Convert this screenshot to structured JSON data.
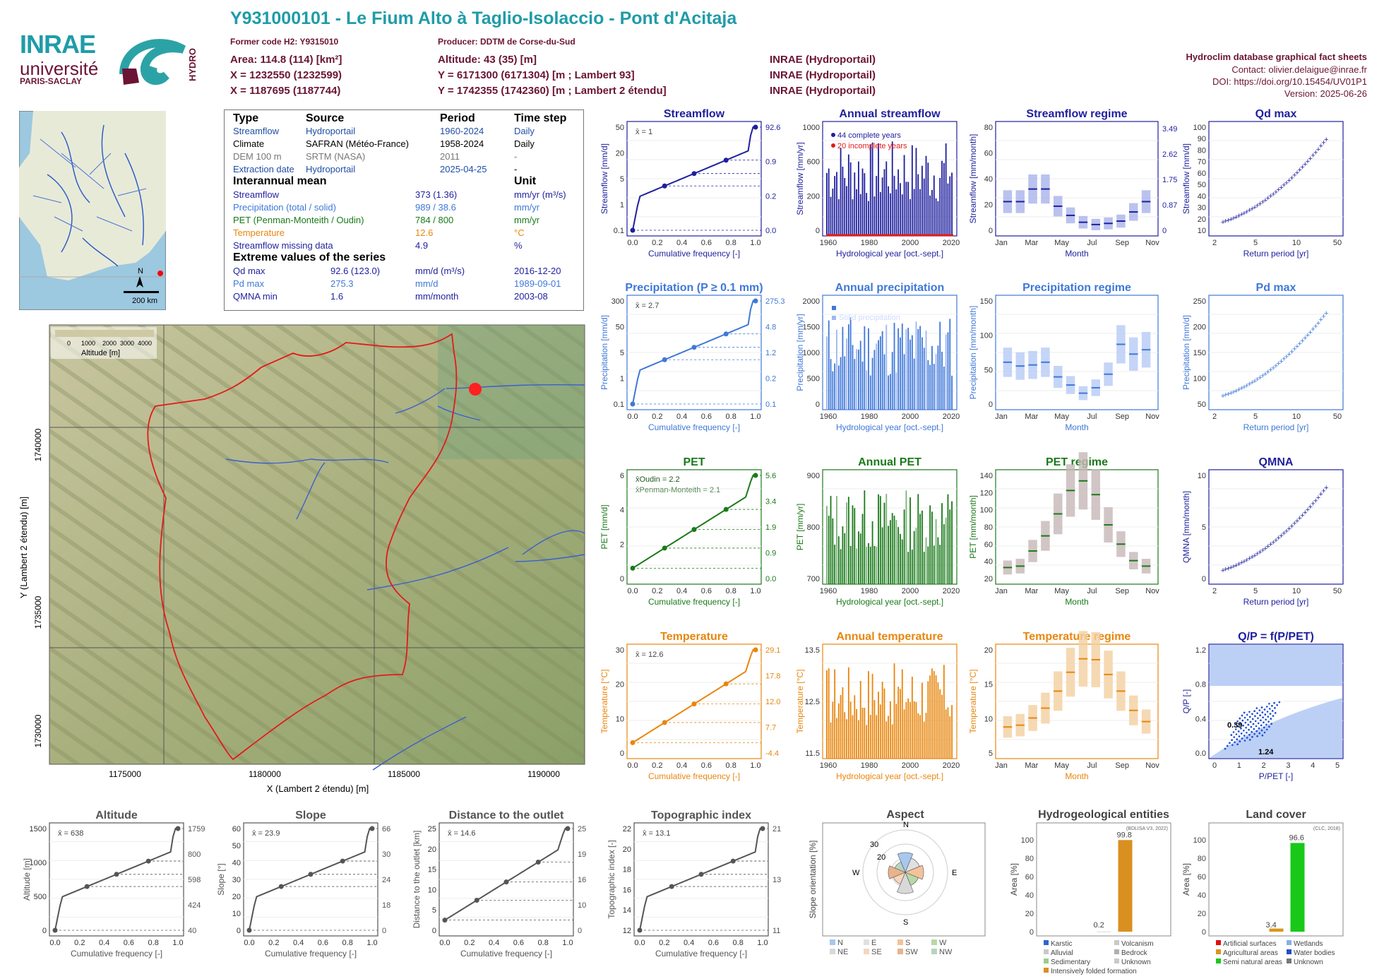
{
  "header": {
    "title": "Y931000101 - Le Fium Alto à Taglio-Isolaccio - Pont d'Acitaja",
    "former_code": "Former code H2: Y9315010",
    "producer": "Producer: DDTM de Corse-du-Sud",
    "area": "Area: 114.8 (114) [km²]",
    "altitude": "Altitude: 43 (35) [m]",
    "x93": "X = 1232550 (1232599)",
    "y93": "Y = 6171300 (6171304) [m ; Lambert 93]",
    "x2e": "X = 1187695 (1187744)",
    "y2e": "Y = 1742355 (1742360) [m ; Lambert 2 étendu]",
    "src1": "INRAE (Hydroportail)",
    "src2": "INRAE (Hydroportail)",
    "src3": "INRAE (Hydroportail)",
    "right1": "Hydroclim database graphical fact sheets",
    "right2": "Contact: olivier.delaigue@inrae.fr",
    "right3": "DOI: https://doi.org/10.15454/UV01P1",
    "right4": "Version: 2025-06-26",
    "logo_inrae": "INRAE",
    "logo_univ": "université",
    "logo_ps": "PARIS-SACLAY",
    "logo_hydro": "HYDRO"
  },
  "overview_map": {
    "north": "N",
    "scale": "200 km"
  },
  "table": {
    "h_type": "Type",
    "h_source": "Source",
    "h_period": "Period",
    "h_step": "Time step",
    "rows": [
      [
        "Streamflow",
        "Hydroportail",
        "1960-2024",
        "Daily"
      ],
      [
        "Climate",
        "SAFRAN (Météo-France)",
        "1958-2024",
        "Daily"
      ],
      [
        "DEM 100 m",
        "SRTM (NASA)",
        "2011",
        "-"
      ],
      [
        "Extraction date",
        "Hydroportail",
        "2025-04-25",
        "-"
      ]
    ],
    "h_inter": "Interannual mean",
    "h_unit": "Unit",
    "means": [
      [
        "Streamflow",
        "373 (1.36)",
        "mm/yr (m³/s)"
      ],
      [
        "Precipitation (total / solid)",
        "989 / 38.6",
        "mm/yr"
      ],
      [
        "PET (Penman-Monteith / Oudin)",
        "784 / 800",
        "mm/yr"
      ],
      [
        "Temperature",
        "12.6",
        "°C"
      ],
      [
        "Streamflow missing data",
        "4.9",
        "%"
      ]
    ],
    "h_extreme": "Extreme values of the series",
    "extremes": [
      [
        "Qd max",
        "92.6 (123.0)",
        "mm/d (m³/s)",
        "2016-12-20"
      ],
      [
        "Pd max",
        "275.3",
        "mm/d",
        "1989-09-01"
      ],
      [
        "QMNA min",
        "1.6",
        "mm/month",
        "2003-08"
      ]
    ]
  },
  "basin_map": {
    "legend_ticks": [
      "0",
      "1000",
      "2000",
      "3000",
      "4000"
    ],
    "legend_label": "Altitude [m]",
    "xlabel": "X (Lambert 2 étendu) [m]",
    "ylabel": "Y (Lambert 2 étendu) [m]",
    "xticks": [
      "1175000",
      "1180000",
      "1185000",
      "1190000"
    ],
    "yticks": [
      "1740000",
      "1735000",
      "1730000"
    ]
  },
  "panels": {
    "streamflow": {
      "title": "Streamflow",
      "ylabel": "Streamflow [mm/d]",
      "xlabel": "Cumulative frequency [-]",
      "mean": "x̄ = 1",
      "right": [
        "92.6",
        "0.9",
        "0.2",
        "0.0"
      ],
      "xt": [
        "0.0",
        "0.2",
        "0.4",
        "0.6",
        "0.8",
        "1.0"
      ],
      "yt": [
        "0.1",
        "1",
        "5",
        "20",
        "50"
      ]
    },
    "annual_streamflow": {
      "title": "Annual streamflow",
      "ylabel": "Streamflow [mm/yr]",
      "xlabel": "Hydrological year [oct.-sept.]",
      "leg1": "44 complete years",
      "leg2": "20 incomplete years",
      "xt": [
        "1960",
        "1980",
        "2000",
        "2020"
      ],
      "yt": [
        "0",
        "200",
        "600",
        "1000"
      ]
    },
    "streamflow_regime": {
      "title": "Streamflow regime",
      "ylabel": "Streamflow [mm/month]",
      "xlabel": "Month",
      "xt": [
        "Jan",
        "Mar",
        "May",
        "Jul",
        "Sep",
        "Nov"
      ],
      "yt": [
        "0",
        "20",
        "40",
        "60",
        "80"
      ],
      "yr": [
        "0",
        "0.87",
        "1.75",
        "2.62",
        "3.49"
      ]
    },
    "qd_max": {
      "title": "Qd max",
      "ylabel": "Streamflow [mm/d]",
      "xlabel": "Return period [yr]",
      "xt": [
        "2",
        "5",
        "10",
        "50"
      ],
      "yt": [
        "10",
        "20",
        "30",
        "40",
        "50",
        "60",
        "70",
        "80",
        "90",
        "100"
      ]
    },
    "precipitation": {
      "title": "Precipitation (P ≥ 0.1 mm)",
      "ylabel": "Precipitation [mm/d]",
      "xlabel": "Cumulative frequency [-]",
      "mean": "x̄ = 2.7",
      "right": [
        "275.3",
        "4.8",
        "1.2",
        "0.2",
        "0.1"
      ],
      "xt": [
        "0.0",
        "0.2",
        "0.4",
        "0.6",
        "0.8",
        "1.0"
      ],
      "yt": [
        "0.1",
        "1",
        "5",
        "50",
        "300"
      ]
    },
    "annual_precip": {
      "title": "Annual precipitation",
      "ylabel": "Precipitation [mm/yr]",
      "xlabel": "Hydrological year [oct.-sept.]",
      "leg1": "Total precipitation",
      "leg2": "Solid precipitation",
      "xt": [
        "1960",
        "1980",
        "2000",
        "2020"
      ],
      "yt": [
        "0",
        "500",
        "1000",
        "1500",
        "2000"
      ]
    },
    "precip_regime": {
      "title": "Precipitation regime",
      "ylabel": "Precipitation [mm/month]",
      "xlabel": "Month",
      "xt": [
        "Jan",
        "Mar",
        "May",
        "Jul",
        "Sep",
        "Nov"
      ],
      "yt": [
        "0",
        "50",
        "100",
        "150"
      ]
    },
    "pd_max": {
      "title": "Pd max",
      "ylabel": "Precipitation [mm/d]",
      "xlabel": "Return period [yr]",
      "xt": [
        "2",
        "5",
        "10",
        "50"
      ],
      "yt": [
        "50",
        "100",
        "150",
        "200",
        "250"
      ]
    },
    "pet": {
      "title": "PET",
      "ylabel": "PET [mm/d]",
      "xlabel": "Cumulative frequency [-]",
      "mean1": "x̄Oudin = 2.2",
      "mean2": "x̄Penman-Monteith = 2.1",
      "right": [
        "5.6",
        "3.4",
        "1.9",
        "0.9",
        "0.0"
      ],
      "xt": [
        "0.0",
        "0.2",
        "0.4",
        "0.6",
        "0.8",
        "1.0"
      ],
      "yt": [
        "0",
        "2",
        "4",
        "6"
      ]
    },
    "annual_pet": {
      "title": "Annual PET",
      "ylabel": "PET [mm/yr]",
      "xlabel": "Hydrological year [oct.-sept.]",
      "xt": [
        "1960",
        "1980",
        "2000",
        "2020"
      ],
      "yt": [
        "700",
        "800",
        "900"
      ]
    },
    "pet_regime": {
      "title": "PET regime",
      "ylabel": "PET [mm/month]",
      "xlabel": "Month",
      "xt": [
        "Jan",
        "Mar",
        "May",
        "Jul",
        "Sep",
        "Nov"
      ],
      "yt": [
        "20",
        "40",
        "60",
        "80",
        "100",
        "120",
        "140"
      ]
    },
    "qmna": {
      "title": "QMNA",
      "ylabel": "QMNA [mm/month]",
      "xlabel": "Return period [yr]",
      "xt": [
        "2",
        "5",
        "10",
        "50"
      ],
      "yt": [
        "0",
        "5",
        "10"
      ]
    },
    "temperature": {
      "title": "Temperature",
      "ylabel": "Temperature [°C]",
      "xlabel": "Cumulative frequency [-]",
      "mean": "x̄ = 12.6",
      "right": [
        "29.1",
        "17.8",
        "12.0",
        "7.7",
        "-4.4"
      ],
      "xt": [
        "0.0",
        "0.2",
        "0.4",
        "0.6",
        "0.8",
        "1.0"
      ],
      "yt": [
        "0",
        "10",
        "20",
        "30"
      ]
    },
    "annual_temp": {
      "title": "Annual temperature",
      "ylabel": "Temperature [°C]",
      "xlabel": "Hydrological year [oct.-sept.]",
      "xt": [
        "1960",
        "1980",
        "2000",
        "2020"
      ],
      "yt": [
        "11.5",
        "12.5",
        "13.5"
      ]
    },
    "temp_regime": {
      "title": "Temperature regime",
      "ylabel": "Temperature [°C]",
      "xlabel": "Month",
      "xt": [
        "Jan",
        "Mar",
        "May",
        "Jul",
        "Sep",
        "Nov"
      ],
      "yt": [
        "5",
        "10",
        "15",
        "20"
      ]
    },
    "qp": {
      "title": "Q/P = f(P/PET)",
      "ylabel": "Q/P [-]",
      "xlabel": "P/PET [-]",
      "l1": "0.39",
      "l2": "1.24",
      "xt": [
        "0",
        "1",
        "2",
        "3",
        "4",
        "5"
      ],
      "yt": [
        "0.0",
        "0.4",
        "0.8",
        "1.2"
      ]
    },
    "altitude": {
      "title": "Altitude",
      "ylabel": "Altitude [m]",
      "xlabel": "Cumulative frequency [-]",
      "mean": "x̄ = 638",
      "right": [
        "1759",
        "800",
        "598",
        "424",
        "40"
      ],
      "xt": [
        "0.0",
        "0.2",
        "0.4",
        "0.6",
        "0.8",
        "1.0"
      ],
      "yt": [
        "0",
        "500",
        "1000",
        "1500"
      ]
    },
    "slope": {
      "title": "Slope",
      "ylabel": "Slope [°]",
      "xlabel": "Cumulative frequency [-]",
      "mean": "x̄ = 23.9",
      "right": [
        "66",
        "30",
        "24",
        "18",
        "0"
      ],
      "xt": [
        "0.0",
        "0.2",
        "0.4",
        "0.6",
        "0.8",
        "1.0"
      ],
      "yt": [
        "0",
        "10",
        "20",
        "30",
        "40",
        "50",
        "60"
      ]
    },
    "distance": {
      "title": "Distance to the outlet",
      "ylabel": "Distance to the outlet [km]",
      "xlabel": "Cumulative frequency [-]",
      "mean": "x̄ = 14.6",
      "right": [
        "25",
        "19",
        "16",
        "10",
        "0"
      ],
      "xt": [
        "0.0",
        "0.2",
        "0.4",
        "0.6",
        "0.8",
        "1.0"
      ],
      "yt": [
        "0",
        "5",
        "10",
        "15",
        "20",
        "25"
      ]
    },
    "topo": {
      "title": "Topographic index",
      "ylabel": "Topographic index [-]",
      "xlabel": "Cumulative frequency [-]",
      "mean": "x̄ = 13.1",
      "right": [
        "21",
        "13",
        "11"
      ],
      "xt": [
        "0.0",
        "0.2",
        "0.4",
        "0.6",
        "0.8",
        "1.0"
      ],
      "yt": [
        "12",
        "14",
        "16",
        "18",
        "20",
        "22"
      ]
    },
    "aspect": {
      "title": "Aspect",
      "ylabel": "Slope orientation [%]",
      "N": "N",
      "E": "E",
      "S": "S",
      "W": "W",
      "r1": "10",
      "r2": "20",
      "r3": "30",
      "leg": [
        "N",
        "E",
        "S",
        "W",
        "NE",
        "SE",
        "SW",
        "NW"
      ]
    },
    "hydrogeo": {
      "title": "Hydrogeological entities",
      "ylabel": "Area [%]",
      "source": "(BDLISA V3, 2022)",
      "v1": "0.2",
      "v2": "99.8",
      "leg": [
        "Karstic",
        "Volcanism",
        "Alluvial",
        "Bedrock",
        "Sedimentary",
        "Unknown",
        "Intensively folded formation"
      ],
      "yt": [
        "0",
        "20",
        "40",
        "60",
        "80",
        "100"
      ]
    },
    "landcover": {
      "title": "Land cover",
      "ylabel": "Area [%]",
      "source": "(CLC, 2018)",
      "v1": "3.4",
      "v2": "96.6",
      "leg": [
        "Artificial surfaces",
        "Wetlands",
        "Agricultural areas",
        "Water bodies",
        "Semi natural areas",
        "Unknown"
      ],
      "yt": [
        "0",
        "20",
        "40",
        "60",
        "80",
        "100"
      ]
    }
  },
  "chart_data": [
    {
      "type": "bar",
      "title": "Annual streamflow",
      "xlabel": "Hydrological year [oct.-sept.]",
      "ylabel": "Streamflow [mm/yr]",
      "ylim": [
        0,
        1200
      ],
      "x": [
        1961,
        1965,
        1970,
        1975,
        1980,
        1985,
        1990,
        1995,
        2000,
        2005,
        2010,
        2015,
        2020
      ],
      "values": [
        300,
        500,
        150,
        700,
        350,
        200,
        600,
        250,
        500,
        900,
        700,
        450,
        400
      ]
    },
    {
      "type": "bar",
      "title": "Streamflow regime",
      "categories": [
        "Jan",
        "Feb",
        "Mar",
        "Apr",
        "May",
        "Jun",
        "Jul",
        "Aug",
        "Sep",
        "Oct",
        "Nov",
        "Dec"
      ],
      "values": [
        25,
        25,
        36,
        36,
        21,
        13,
        7,
        5,
        6,
        8,
        16,
        25
      ],
      "ylabel": "Streamflow [mm/month]"
    },
    {
      "type": "bar",
      "title": "Precipitation regime",
      "categories": [
        "Jan",
        "Feb",
        "Mar",
        "Apr",
        "May",
        "Jun",
        "Jul",
        "Aug",
        "Sep",
        "Oct",
        "Nov",
        "Dec"
      ],
      "values": [
        77,
        70,
        72,
        77,
        50,
        35,
        20,
        30,
        55,
        110,
        92,
        100
      ],
      "ylabel": "Precipitation [mm/month]"
    },
    {
      "type": "bar",
      "title": "PET regime",
      "categories": [
        "Jan",
        "Feb",
        "Mar",
        "Apr",
        "May",
        "Jun",
        "Jul",
        "Aug",
        "Sep",
        "Oct",
        "Nov",
        "Dec"
      ],
      "values": [
        16,
        18,
        40,
        62,
        94,
        128,
        142,
        122,
        78,
        50,
        26,
        18
      ],
      "ylabel": "PET [mm/month]"
    },
    {
      "type": "bar",
      "title": "Temperature regime",
      "categories": [
        "Jan",
        "Feb",
        "Mar",
        "Apr",
        "May",
        "Jun",
        "Jul",
        "Aug",
        "Sep",
        "Oct",
        "Nov",
        "Dec"
      ],
      "values": [
        5.8,
        6.2,
        7.8,
        10,
        13.8,
        18,
        21,
        20.8,
        17.5,
        13.8,
        9.5,
        7
      ],
      "ylabel": "Temperature [°C]"
    },
    {
      "type": "bar",
      "title": "Hydrogeological entities",
      "categories": [
        "Sedimentary",
        "Intensively folded formation"
      ],
      "values": [
        0.2,
        99.8
      ],
      "ylabel": "Area [%]"
    },
    {
      "type": "bar",
      "title": "Land cover",
      "categories": [
        "Agricultural areas",
        "Semi natural areas"
      ],
      "values": [
        3.4,
        96.6
      ],
      "ylabel": "Area [%]"
    }
  ]
}
